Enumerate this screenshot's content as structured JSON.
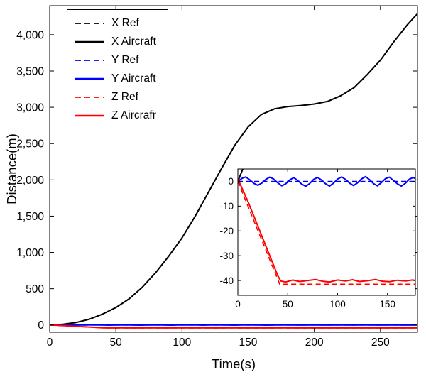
{
  "chart_data": {
    "type": "line",
    "title": "",
    "xlabel": "Time(s)",
    "ylabel": "Distance(m)",
    "legend_position": "top-left",
    "grid": false,
    "colors": {
      "x": "#000000",
      "y": "#0000ff",
      "z": "#ff0000",
      "axis": "#000000",
      "background": "#ffffff"
    },
    "main": {
      "xlim": [
        0,
        278
      ],
      "ylim": [
        -100,
        4400
      ],
      "xticks": [
        0,
        50,
        100,
        150,
        200,
        250
      ],
      "xtick_labels": [
        "0",
        "50",
        "100",
        "150",
        "200",
        "250"
      ],
      "yticks": [
        0,
        500,
        1000,
        1500,
        2000,
        2500,
        3000,
        3500,
        4000
      ],
      "ytick_labels": [
        "0",
        "500",
        "1,000",
        "1,500",
        "2,000",
        "2,500",
        "3,000",
        "3,500",
        "4,000"
      ]
    },
    "inset": {
      "xlim": [
        0,
        178
      ],
      "ylim": [
        -46,
        5
      ],
      "xticks": [
        0,
        50,
        100,
        150
      ],
      "xtick_labels": [
        "0",
        "50",
        "100",
        "150"
      ],
      "yticks": [
        0,
        -10,
        -20,
        -30,
        -40
      ],
      "ytick_labels": [
        "0",
        "-10",
        "-20",
        "-30",
        "-40"
      ]
    },
    "series": [
      {
        "id": "x-ref",
        "name": "X Ref",
        "color": "#000000",
        "style": "dashed",
        "points": [
          [
            0,
            0
          ],
          [
            10,
            10
          ],
          [
            20,
            35
          ],
          [
            30,
            80
          ],
          [
            40,
            150
          ],
          [
            50,
            240
          ],
          [
            60,
            360
          ],
          [
            70,
            520
          ],
          [
            80,
            720
          ],
          [
            90,
            950
          ],
          [
            100,
            1200
          ],
          [
            110,
            1500
          ],
          [
            120,
            1830
          ],
          [
            130,
            2160
          ],
          [
            140,
            2480
          ],
          [
            150,
            2730
          ],
          [
            160,
            2900
          ],
          [
            170,
            2980
          ],
          [
            180,
            3010
          ],
          [
            190,
            3025
          ],
          [
            200,
            3045
          ],
          [
            210,
            3080
          ],
          [
            220,
            3160
          ],
          [
            230,
            3270
          ],
          [
            240,
            3450
          ],
          [
            250,
            3650
          ],
          [
            260,
            3900
          ],
          [
            270,
            4130
          ],
          [
            278,
            4290
          ]
        ]
      },
      {
        "id": "x-aircraft",
        "name": "X Aircraft",
        "color": "#000000",
        "style": "solid",
        "points": [
          [
            0,
            0
          ],
          [
            10,
            10
          ],
          [
            20,
            35
          ],
          [
            30,
            80
          ],
          [
            40,
            150
          ],
          [
            50,
            240
          ],
          [
            60,
            360
          ],
          [
            70,
            520
          ],
          [
            80,
            720
          ],
          [
            90,
            950
          ],
          [
            100,
            1200
          ],
          [
            110,
            1500
          ],
          [
            120,
            1830
          ],
          [
            130,
            2160
          ],
          [
            140,
            2480
          ],
          [
            150,
            2730
          ],
          [
            160,
            2900
          ],
          [
            170,
            2980
          ],
          [
            180,
            3010
          ],
          [
            190,
            3025
          ],
          [
            200,
            3045
          ],
          [
            210,
            3080
          ],
          [
            220,
            3160
          ],
          [
            230,
            3270
          ],
          [
            240,
            3450
          ],
          [
            250,
            3650
          ],
          [
            260,
            3900
          ],
          [
            270,
            4130
          ],
          [
            278,
            4290
          ]
        ]
      },
      {
        "id": "y-ref",
        "name": "Y Ref",
        "color": "#0000ff",
        "style": "dashed",
        "points": [
          [
            0,
            0
          ],
          [
            278,
            0
          ]
        ]
      },
      {
        "id": "y-aircraft",
        "name": "Y Aircraft",
        "color": "#0000ff",
        "style": "solid",
        "points": [
          [
            0,
            0
          ],
          [
            4,
            1.2
          ],
          [
            8,
            1.8
          ],
          [
            12,
            0.6
          ],
          [
            16,
            -0.8
          ],
          [
            20,
            -1.6
          ],
          [
            24,
            -0.7
          ],
          [
            28,
            0.8
          ],
          [
            32,
            1.7
          ],
          [
            36,
            0.9
          ],
          [
            40,
            -0.6
          ],
          [
            44,
            -1.8
          ],
          [
            48,
            -1.0
          ],
          [
            52,
            0.6
          ],
          [
            56,
            1.5
          ],
          [
            60,
            0.4
          ],
          [
            64,
            -1.1
          ],
          [
            68,
            -2.0
          ],
          [
            72,
            -0.9
          ],
          [
            76,
            0.8
          ],
          [
            80,
            1.6
          ],
          [
            84,
            0.5
          ],
          [
            88,
            -1.0
          ],
          [
            92,
            -1.9
          ],
          [
            96,
            -0.7
          ],
          [
            100,
            0.9
          ],
          [
            104,
            1.8
          ],
          [
            108,
            0.8
          ],
          [
            112,
            -0.7
          ],
          [
            116,
            -1.7
          ],
          [
            120,
            -0.6
          ],
          [
            124,
            1.0
          ],
          [
            128,
            1.9
          ],
          [
            132,
            0.7
          ],
          [
            136,
            -0.9
          ],
          [
            140,
            -1.8
          ],
          [
            144,
            -0.5
          ],
          [
            148,
            1.1
          ],
          [
            152,
            1.7
          ],
          [
            156,
            0.4
          ],
          [
            160,
            -1.0
          ],
          [
            164,
            -1.9
          ],
          [
            168,
            -0.8
          ],
          [
            172,
            0.9
          ],
          [
            176,
            1.6
          ],
          [
            180,
            0.5
          ],
          [
            190,
            -1.2
          ],
          [
            200,
            0.8
          ],
          [
            210,
            -1.0
          ],
          [
            220,
            1.1
          ],
          [
            230,
            -0.9
          ],
          [
            240,
            1.0
          ],
          [
            250,
            -1.1
          ],
          [
            260,
            0.9
          ],
          [
            270,
            -0.8
          ],
          [
            278,
            0.5
          ]
        ]
      },
      {
        "id": "z-ref",
        "name": "Z Ref",
        "color": "#ff0000",
        "style": "dashed",
        "points": [
          [
            0,
            0
          ],
          [
            42,
            -41.5
          ],
          [
            278,
            -41.5
          ]
        ]
      },
      {
        "id": "z-aircraft",
        "name": "Z Aircrafr",
        "color": "#ff0000",
        "style": "solid",
        "points": [
          [
            0,
            1
          ],
          [
            5,
            -3.5
          ],
          [
            10,
            -8
          ],
          [
            15,
            -13
          ],
          [
            20,
            -18
          ],
          [
            25,
            -23
          ],
          [
            30,
            -28
          ],
          [
            35,
            -33
          ],
          [
            40,
            -38
          ],
          [
            43,
            -40.2
          ],
          [
            48,
            -40.6
          ],
          [
            55,
            -39.8
          ],
          [
            62,
            -40.4
          ],
          [
            70,
            -40
          ],
          [
            78,
            -39.6
          ],
          [
            85,
            -40.3
          ],
          [
            92,
            -40.6
          ],
          [
            100,
            -39.8
          ],
          [
            108,
            -40.2
          ],
          [
            115,
            -39.7
          ],
          [
            122,
            -40.4
          ],
          [
            130,
            -40.1
          ],
          [
            138,
            -39.6
          ],
          [
            145,
            -40.3
          ],
          [
            152,
            -40.5
          ],
          [
            160,
            -39.9
          ],
          [
            168,
            -40.2
          ],
          [
            175,
            -39.8
          ],
          [
            185,
            -40.3
          ],
          [
            200,
            -40
          ],
          [
            220,
            -40.2
          ],
          [
            240,
            -39.9
          ],
          [
            260,
            -40.1
          ],
          [
            278,
            -40
          ]
        ]
      }
    ]
  }
}
